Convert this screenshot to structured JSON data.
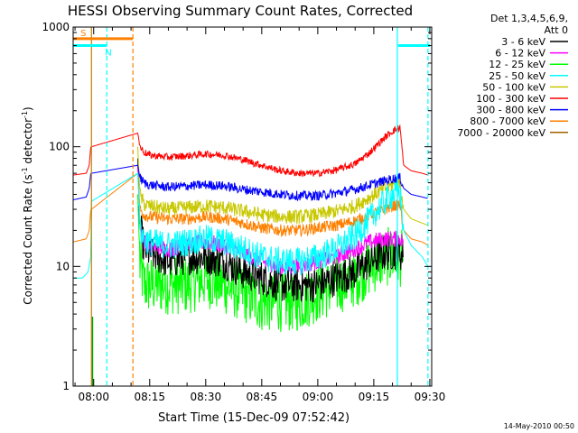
{
  "chart_data": {
    "type": "line",
    "title": "HESSI Observing Summary Count Rates, Corrected",
    "xlabel": "Start Time (15-Dec-09 07:52:42)",
    "ylabel_main": "Corrected Count Rate (s",
    "ylabel_sup1": "-1",
    "ylabel_mid": " detector",
    "ylabel_sup2": "-1",
    "ylabel_end": ")",
    "yscale": "log",
    "ylim": [
      1,
      1000
    ],
    "xlim_minutes": [
      -5.5,
      90.5
    ],
    "x_origin_label": "08:00",
    "xticks": [
      {
        "m": 0,
        "label": "08:00"
      },
      {
        "m": 15,
        "label": "08:15"
      },
      {
        "m": 30,
        "label": "08:30"
      },
      {
        "m": 45,
        "label": "08:45"
      },
      {
        "m": 60,
        "label": "09:00"
      },
      {
        "m": 75,
        "label": "09:15"
      },
      {
        "m": 90,
        "label": "09:30"
      }
    ],
    "yticks": [
      {
        "v": 1,
        "label": "1"
      },
      {
        "v": 10,
        "label": "10"
      },
      {
        "v": 100,
        "label": "100"
      },
      {
        "v": 1000,
        "label": "1000"
      }
    ],
    "legend_header": [
      "Det 1,3,4,5,6,9,",
      "Att 0"
    ],
    "footer_date": "14-May-2010 00:50",
    "colors": {
      "cyan": "#00ffff",
      "orange": "#ff8000"
    },
    "markers": [
      {
        "type": "saa",
        "label": "S",
        "start": -5.5,
        "end": 10.5,
        "level": 800,
        "color": "#ff8000"
      },
      {
        "type": "night",
        "label": "N",
        "start": -5.5,
        "end": 3.5,
        "level": 700,
        "color": "#00ffff"
      },
      {
        "type": "night",
        "label": "",
        "start": 81.5,
        "end": 90,
        "level": 700,
        "color": "#00ffff"
      }
    ],
    "vlines": [
      {
        "m": 3.5,
        "color": "#00ffff"
      },
      {
        "m": 10.5,
        "color": "#ff8000"
      },
      {
        "m": 89.5,
        "color": "#00ffff"
      }
    ],
    "solid_vlines": [
      {
        "m": 81.3,
        "color": "#00ffff"
      },
      {
        "m": -0.6,
        "color": "#c08000"
      }
    ],
    "series": [
      {
        "name": "3 - 6 keV",
        "color": "#000000",
        "noise": 0.15,
        "pts": [
          [
            11.8,
            80
          ],
          [
            12.4,
            22
          ],
          [
            13.5,
            14
          ],
          [
            15,
            13
          ],
          [
            20,
            11
          ],
          [
            25,
            12
          ],
          [
            30,
            12
          ],
          [
            35,
            11
          ],
          [
            40,
            9
          ],
          [
            45,
            8
          ],
          [
            50,
            7
          ],
          [
            55,
            7
          ],
          [
            60,
            7
          ],
          [
            65,
            8
          ],
          [
            70,
            9
          ],
          [
            74,
            11
          ],
          [
            78,
            13
          ],
          [
            80,
            13
          ],
          [
            82,
            13
          ],
          [
            83,
            12
          ]
        ]
      },
      {
        "name": "6 - 12 keV",
        "color": "#ff00ff",
        "noise": 0.07,
        "pts": [
          [
            11.8,
            70
          ],
          [
            12.4,
            22
          ],
          [
            13.5,
            16
          ],
          [
            15,
            15
          ],
          [
            20,
            14
          ],
          [
            25,
            15
          ],
          [
            30,
            16
          ],
          [
            35,
            15
          ],
          [
            40,
            13
          ],
          [
            45,
            11
          ],
          [
            50,
            10
          ],
          [
            55,
            10
          ],
          [
            60,
            11
          ],
          [
            65,
            12
          ],
          [
            70,
            14
          ],
          [
            74,
            16
          ],
          [
            78,
            17
          ],
          [
            82,
            17
          ],
          [
            83,
            16
          ]
        ]
      },
      {
        "name": "12 - 25 keV",
        "color": "#00ff00",
        "noise": 0.25,
        "pts": [
          [
            11.8,
            40
          ],
          [
            12.4,
            10
          ],
          [
            13.5,
            7
          ],
          [
            15,
            7
          ],
          [
            20,
            7
          ],
          [
            25,
            7
          ],
          [
            30,
            8
          ],
          [
            35,
            7
          ],
          [
            40,
            6
          ],
          [
            45,
            5
          ],
          [
            50,
            5
          ],
          [
            55,
            5
          ],
          [
            60,
            6
          ],
          [
            65,
            7
          ],
          [
            70,
            8
          ],
          [
            74,
            10
          ],
          [
            78,
            12
          ],
          [
            80,
            12
          ],
          [
            82,
            12
          ],
          [
            83,
            11
          ]
        ]
      },
      {
        "name": "25 - 50 keV",
        "color": "#00ffff",
        "noise": 0.12,
        "pts": [
          [
            -5.5,
            8
          ],
          [
            -3,
            8
          ],
          [
            -1.5,
            9
          ],
          [
            -0.8,
            12
          ],
          [
            -0.6,
            35
          ],
          [
            11.8,
            60
          ],
          [
            12.4,
            20
          ],
          [
            13.5,
            17
          ],
          [
            15,
            16
          ],
          [
            20,
            15
          ],
          [
            25,
            16
          ],
          [
            30,
            17
          ],
          [
            35,
            16
          ],
          [
            40,
            14
          ],
          [
            45,
            12
          ],
          [
            50,
            11
          ],
          [
            55,
            11
          ],
          [
            60,
            12
          ],
          [
            65,
            14
          ],
          [
            70,
            18
          ],
          [
            74,
            25
          ],
          [
            78,
            35
          ],
          [
            80,
            40
          ],
          [
            82,
            42
          ],
          [
            83,
            20
          ],
          [
            85,
            15
          ],
          [
            88,
            12
          ],
          [
            89.5,
            10
          ]
        ]
      },
      {
        "name": "50 - 100 keV",
        "color": "#c8c800",
        "noise": 0.06,
        "pts": [
          [
            11.8,
            100
          ],
          [
            12.4,
            40
          ],
          [
            13.5,
            33
          ],
          [
            15,
            32
          ],
          [
            20,
            30
          ],
          [
            25,
            31
          ],
          [
            30,
            32
          ],
          [
            35,
            31
          ],
          [
            40,
            29
          ],
          [
            45,
            27
          ],
          [
            50,
            26
          ],
          [
            55,
            26
          ],
          [
            60,
            27
          ],
          [
            65,
            29
          ],
          [
            70,
            32
          ],
          [
            74,
            38
          ],
          [
            78,
            45
          ],
          [
            80,
            48
          ],
          [
            82,
            50
          ],
          [
            83,
            30
          ],
          [
            85,
            25
          ],
          [
            88,
            23
          ],
          [
            89.5,
            22
          ]
        ]
      },
      {
        "name": "100 - 300 keV",
        "color": "#ff0000",
        "noise": 0.03,
        "pts": [
          [
            -5.5,
            58
          ],
          [
            -2,
            60
          ],
          [
            -1.2,
            70
          ],
          [
            -0.8,
            100
          ],
          [
            -0.6,
            100
          ],
          [
            11.8,
            130
          ],
          [
            12.4,
            100
          ],
          [
            13.5,
            90
          ],
          [
            15,
            85
          ],
          [
            20,
            82
          ],
          [
            25,
            84
          ],
          [
            30,
            87
          ],
          [
            35,
            85
          ],
          [
            40,
            78
          ],
          [
            45,
            70
          ],
          [
            50,
            63
          ],
          [
            55,
            60
          ],
          [
            60,
            60
          ],
          [
            65,
            64
          ],
          [
            70,
            72
          ],
          [
            74,
            90
          ],
          [
            78,
            120
          ],
          [
            80,
            135
          ],
          [
            82,
            145
          ],
          [
            83,
            70
          ],
          [
            85,
            63
          ],
          [
            88,
            60
          ],
          [
            89.5,
            58
          ]
        ]
      },
      {
        "name": "300 - 800 keV",
        "color": "#0000ff",
        "noise": 0.04,
        "pts": [
          [
            -5.5,
            36
          ],
          [
            -2,
            38
          ],
          [
            -1.2,
            45
          ],
          [
            -0.8,
            60
          ],
          [
            -0.6,
            60
          ],
          [
            11.8,
            70
          ],
          [
            12.4,
            55
          ],
          [
            13.5,
            50
          ],
          [
            15,
            48
          ],
          [
            20,
            46
          ],
          [
            25,
            47
          ],
          [
            30,
            48
          ],
          [
            35,
            47
          ],
          [
            40,
            44
          ],
          [
            45,
            42
          ],
          [
            50,
            40
          ],
          [
            55,
            39
          ],
          [
            60,
            39
          ],
          [
            65,
            41
          ],
          [
            70,
            44
          ],
          [
            74,
            48
          ],
          [
            78,
            52
          ],
          [
            80,
            54
          ],
          [
            82,
            55
          ],
          [
            83,
            45
          ],
          [
            85,
            40
          ],
          [
            88,
            38
          ],
          [
            89.5,
            37
          ]
        ]
      },
      {
        "name": "800 - 7000 keV",
        "color": "#ff8000",
        "noise": 0.05,
        "pts": [
          [
            -5.5,
            16
          ],
          [
            -2,
            17
          ],
          [
            -1.2,
            20
          ],
          [
            -0.8,
            30
          ],
          [
            -0.6,
            30
          ],
          [
            11.8,
            60
          ],
          [
            12.4,
            30
          ],
          [
            13.5,
            27
          ],
          [
            15,
            26
          ],
          [
            20,
            25
          ],
          [
            25,
            25
          ],
          [
            30,
            26
          ],
          [
            35,
            25
          ],
          [
            40,
            23
          ],
          [
            45,
            21
          ],
          [
            50,
            20
          ],
          [
            55,
            20
          ],
          [
            60,
            21
          ],
          [
            65,
            22
          ],
          [
            70,
            24
          ],
          [
            74,
            27
          ],
          [
            78,
            30
          ],
          [
            80,
            32
          ],
          [
            82,
            33
          ],
          [
            83,
            20
          ],
          [
            85,
            17
          ],
          [
            88,
            16
          ],
          [
            89.5,
            15
          ]
        ]
      },
      {
        "name": "7000 - 20000 keV",
        "color": "#a06000",
        "noise": 0.0,
        "pts": []
      }
    ]
  }
}
